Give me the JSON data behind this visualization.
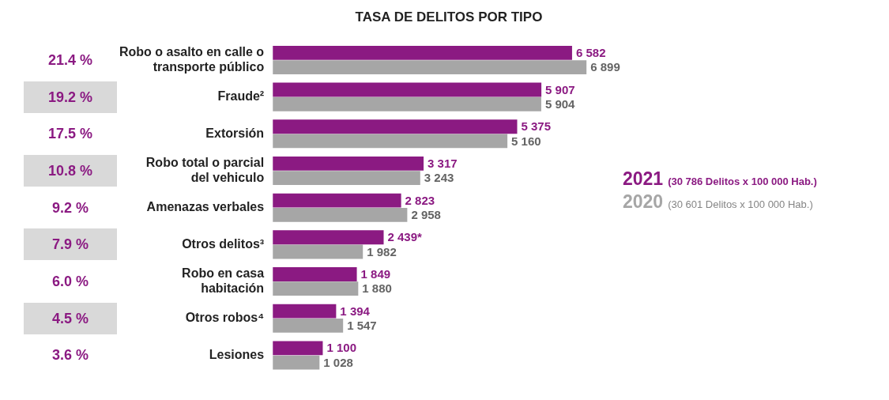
{
  "chart_data": {
    "type": "bar",
    "orientation": "horizontal",
    "title": "TASA DE DELITOS POR TIPO",
    "legend": "right",
    "categories": [
      "Robo o asalto en calle o\ntransporte público",
      "Fraude²",
      "Extorsión",
      "Robo total o parcial\ndel vehiculo",
      "Amenazas verbales",
      "Otros delitos³",
      "Robo en casa\nhabitación",
      "Otros robos⁴",
      "Lesiones"
    ],
    "series": [
      {
        "name": "2021",
        "color": "#8b1a82",
        "values": [
          6582,
          5907,
          5375,
          3317,
          2823,
          2439,
          1849,
          1394,
          1100
        ],
        "value_labels": [
          "6 582",
          "5 907",
          "5 375",
          "3 317",
          "2 823",
          "2 439*",
          "1 849",
          "1 394",
          "1 100"
        ]
      },
      {
        "name": "2020",
        "color": "#a6a6a6",
        "values": [
          6899,
          5904,
          5160,
          3243,
          2958,
          1982,
          1880,
          1547,
          1028
        ],
        "value_labels": [
          "6 899",
          "5 904",
          "5 160",
          "3 243",
          "2 958",
          "1 982",
          "1 880",
          "1 547",
          "1 028"
        ]
      }
    ],
    "annotations": [
      "21.4 %",
      "19.2 %",
      "17.5 %",
      "10.8 %",
      "9.2 %",
      "7.9 %",
      "6.0 %",
      "4.5 %",
      "3.6 %",
      "(30 786 Delitos x 100 000 Hab.)",
      "(30 601  Delitos x 100 000 Hab.)"
    ]
  }
}
